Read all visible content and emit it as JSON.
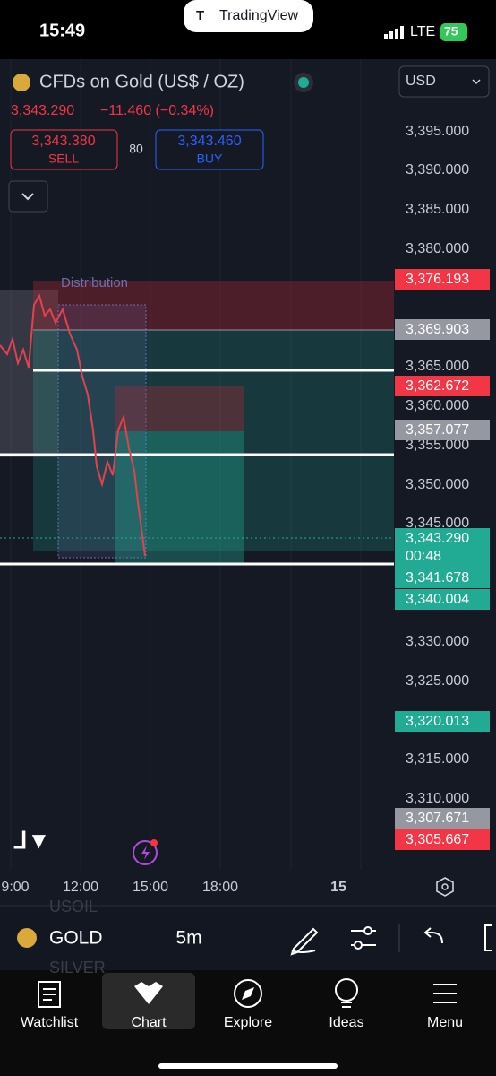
{
  "status_bar": {
    "time": "15:49",
    "app_banner": "TradingView",
    "network": "LTE",
    "battery": "75"
  },
  "header": {
    "symbol": "CFDs on Gold (US$ / OZ)",
    "last_price": "3,343.290",
    "change": "−11.460 (−0.34%)",
    "sell": {
      "price": "3,343.380",
      "label": "SELL"
    },
    "spread": "80",
    "buy": {
      "price": "3,343.460",
      "label": "BUY"
    },
    "currency": "USD"
  },
  "chart": {
    "annotation": "Distribution",
    "price_scale": [
      "3,395.000",
      "3,390.000",
      "3,385.000",
      "3,380.000",
      "3,365.000",
      "3,360.000",
      "3,355.000",
      "3,350.000",
      "3,345.000",
      "3,330.000",
      "3,325.000",
      "3,315.000",
      "3,310.000"
    ],
    "price_badges": [
      {
        "price": "3,376.193"
      },
      {
        "price": "3,369.903"
      },
      {
        "price": "3,362.672"
      },
      {
        "price": "3,357.077"
      },
      {
        "price": "3,343.290",
        "timer": "00:48"
      },
      {
        "price": "3,341.678"
      },
      {
        "price": "3,340.004"
      },
      {
        "price": "3,320.013"
      },
      {
        "price": "3,307.671"
      },
      {
        "price": "3,305.667"
      }
    ],
    "time_scale": [
      "9:00",
      "12:00",
      "15:00",
      "18:00",
      "15"
    ]
  },
  "toolbar": {
    "symbol": "GOLD",
    "interval": "5m",
    "watchlist_peek": [
      "USOIL",
      "SILVER"
    ]
  },
  "nav": [
    "Watchlist",
    "Chart",
    "Explore",
    "Ideas",
    "Menu"
  ]
}
